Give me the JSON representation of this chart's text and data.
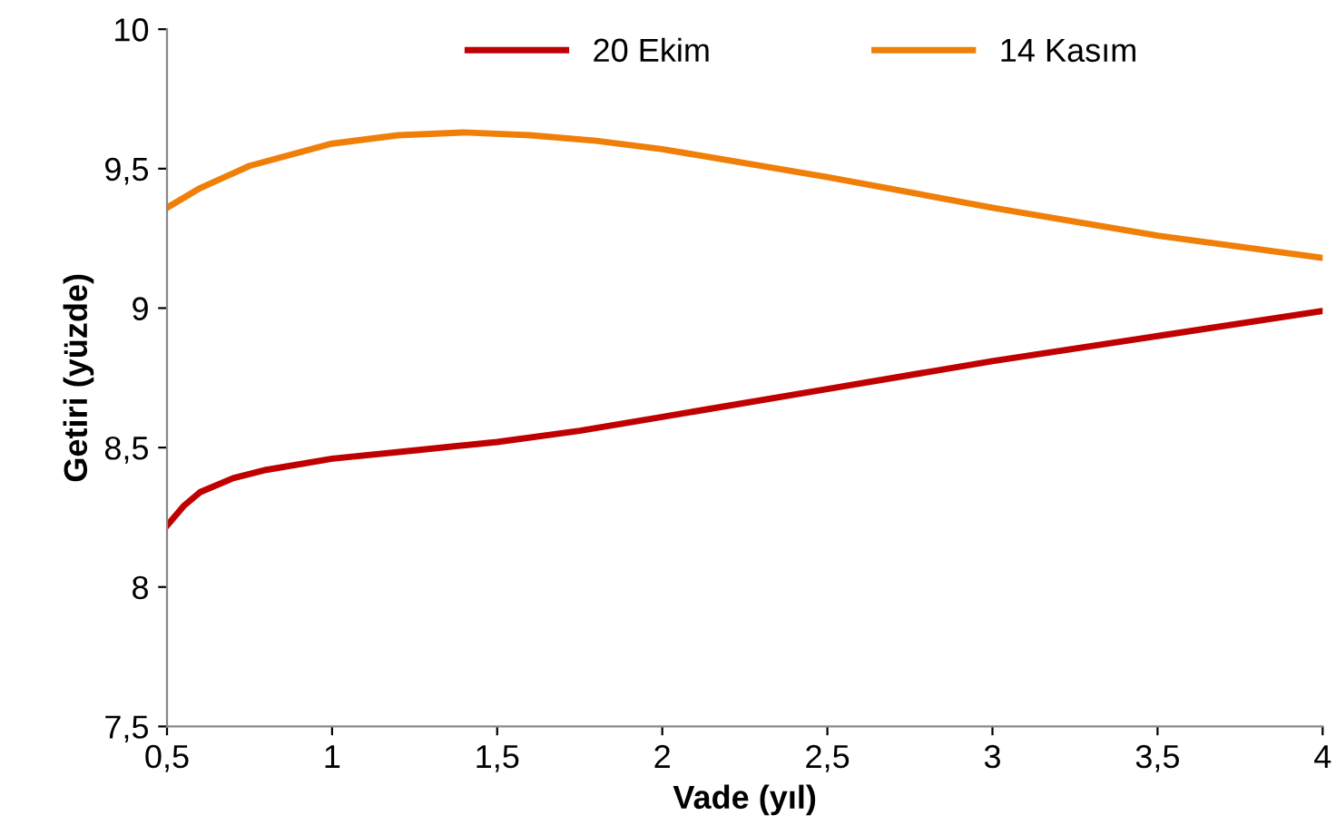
{
  "chart_data": {
    "type": "line",
    "xlabel": "Vade (yıl)",
    "ylabel": "Getiri (yüzde)",
    "xlim": [
      0.5,
      4
    ],
    "ylim": [
      7.5,
      10
    ],
    "xticks": [
      {
        "value": 0.5,
        "label": "0,5"
      },
      1,
      {
        "value": 1.5,
        "label": "1,5"
      },
      2,
      {
        "value": 2.5,
        "label": "2,5"
      },
      3,
      {
        "value": 3.5,
        "label": "3,5"
      },
      4
    ],
    "yticks": [
      {
        "value": 7.5,
        "label": "7,5"
      },
      8,
      {
        "value": 8.5,
        "label": "8,5"
      },
      9,
      {
        "value": 9.5,
        "label": "9,5"
      },
      10
    ],
    "grid": false,
    "legend": "top",
    "marker": "none",
    "line_style": "solid",
    "series": [
      {
        "name": "20 Ekim",
        "color": "#c00000",
        "x": [
          0.5,
          0.55,
          0.6,
          0.7,
          0.8,
          1,
          1.25,
          1.5,
          1.75,
          2,
          2.5,
          3,
          3.5,
          4
        ],
        "values": [
          8.22,
          8.29,
          8.34,
          8.39,
          8.42,
          8.46,
          8.49,
          8.52,
          8.56,
          8.61,
          8.71,
          8.81,
          8.9,
          8.99
        ]
      },
      {
        "name": "14 Kasım",
        "color": "#f07f09",
        "x": [
          0.5,
          0.6,
          0.75,
          1,
          1.2,
          1.4,
          1.6,
          1.8,
          2,
          2.5,
          3,
          3.5,
          4
        ],
        "values": [
          9.36,
          9.43,
          9.51,
          9.59,
          9.62,
          9.63,
          9.62,
          9.6,
          9.57,
          9.47,
          9.36,
          9.26,
          9.18
        ]
      }
    ]
  }
}
